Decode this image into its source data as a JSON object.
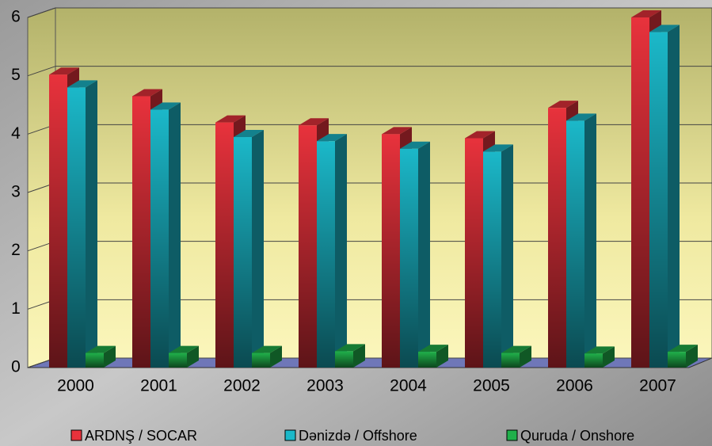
{
  "chart_data": {
    "type": "bar3d",
    "categories": [
      "2000",
      "2001",
      "2002",
      "2003",
      "2004",
      "2005",
      "2006",
      "2007"
    ],
    "series": [
      {
        "name": "ARDNŞ / SOCAR",
        "color": "#e8323c",
        "values": [
          5.02,
          4.65,
          4.2,
          4.15,
          4.0,
          3.93,
          4.45,
          6.0
        ]
      },
      {
        "name": "Dənizdə / Offshore",
        "color": "#1bb8c9",
        "values": [
          4.8,
          4.42,
          3.95,
          3.88,
          3.75,
          3.7,
          4.23,
          5.75
        ]
      },
      {
        "name": "Quruda / Onshore",
        "color": "#20b04a",
        "values": [
          0.25,
          0.25,
          0.25,
          0.28,
          0.27,
          0.25,
          0.24,
          0.27
        ]
      }
    ],
    "ylim": [
      0,
      6
    ],
    "yticks": [
      0,
      1,
      2,
      3,
      4,
      5,
      6
    ],
    "grid": true,
    "legend": "bottom"
  }
}
